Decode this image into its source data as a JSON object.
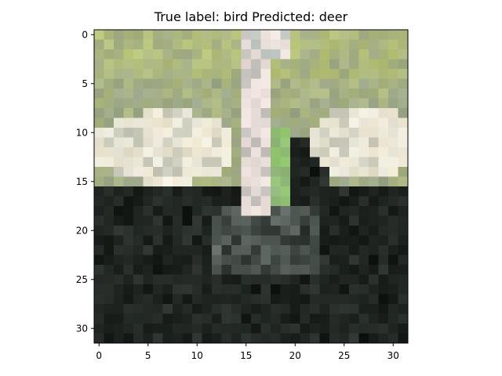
{
  "figure": {
    "title": "True label: bird Predicted: deer"
  },
  "image": {
    "description": "32x32 pixelated photo of an ostrich-like bird with a pale long neck, dark body, white wing patches on both sides, green foliage background",
    "grid": {
      "rows": 32,
      "cols": 32
    },
    "palette": {
      "foliage_yellow_green": "#b9c478",
      "foliage_gray_green": "#9aa58a",
      "neck_pink": "#e7d6d2",
      "neck_gray": "#9aa4a0",
      "wing_white": "#f2f1ea",
      "wing_cream": "#e8e2cc",
      "body_dark": "#141815",
      "body_darkgray": "#2b322d",
      "bright_green": "#8fc56a"
    }
  },
  "axes": {
    "x_ticks": [
      "0",
      "5",
      "10",
      "15",
      "20",
      "25",
      "30"
    ],
    "y_ticks": [
      "0",
      "5",
      "10",
      "15",
      "20",
      "25",
      "30"
    ]
  }
}
